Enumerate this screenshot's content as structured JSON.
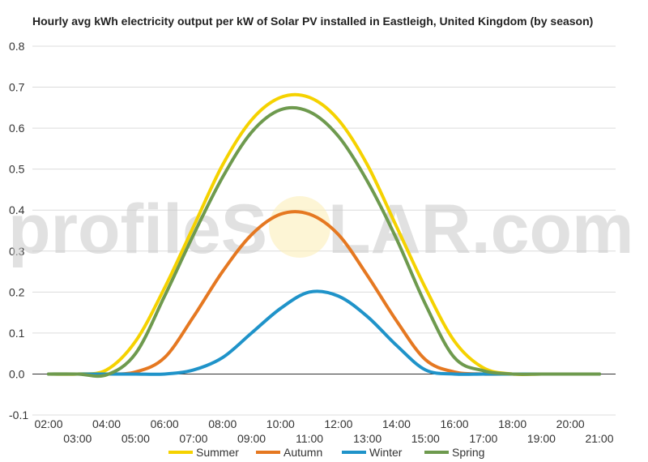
{
  "watermark": {
    "left": "profileS",
    "right": "LAR.com"
  },
  "chart_data": {
    "type": "line",
    "title": "Hourly avg kWh electricity output per kW of Solar PV installed in Eastleigh, United Kingdom (by season)",
    "xlabel": "",
    "ylabel": "",
    "x": [
      "02:00",
      "03:00",
      "04:00",
      "05:00",
      "06:00",
      "07:00",
      "08:00",
      "09:00",
      "10:00",
      "11:00",
      "12:00",
      "13:00",
      "14:00",
      "15:00",
      "16:00",
      "17:00",
      "18:00",
      "19:00",
      "20:00",
      "21:00"
    ],
    "x_tick_labels_upper": [
      "02:00",
      "04:00",
      "06:00",
      "08:00",
      "10:00",
      "12:00",
      "14:00",
      "16:00",
      "18:00",
      "20:00"
    ],
    "x_tick_labels_lower": [
      "03:00",
      "05:00",
      "07:00",
      "09:00",
      "11:00",
      "13:00",
      "15:00",
      "17:00",
      "19:00",
      "21:00"
    ],
    "ylim": [
      -0.1,
      0.8
    ],
    "y_ticks": [
      -0.1,
      0.0,
      0.1,
      0.2,
      0.3,
      0.4,
      0.5,
      0.6,
      0.7,
      0.8
    ],
    "grid": true,
    "legend_position": "bottom",
    "series": [
      {
        "name": "Summer",
        "color": "#f5d200",
        "values": [
          0,
          0,
          0.01,
          0.08,
          0.21,
          0.36,
          0.51,
          0.62,
          0.675,
          0.675,
          0.62,
          0.51,
          0.36,
          0.21,
          0.08,
          0.015,
          0,
          0,
          0,
          0
        ]
      },
      {
        "name": "Autumn",
        "color": "#e57821",
        "values": [
          0,
          0,
          0,
          0.005,
          0.04,
          0.14,
          0.25,
          0.34,
          0.39,
          0.39,
          0.34,
          0.24,
          0.13,
          0.035,
          0.005,
          0,
          0,
          0,
          0,
          0
        ]
      },
      {
        "name": "Winter",
        "color": "#1f93c9",
        "values": [
          0,
          0,
          0,
          0,
          0,
          0.01,
          0.04,
          0.1,
          0.16,
          0.2,
          0.19,
          0.14,
          0.07,
          0.01,
          0,
          0,
          0,
          0,
          0,
          0
        ]
      },
      {
        "name": "Spring",
        "color": "#6e9a4e",
        "values": [
          0,
          0,
          -0.002,
          0.05,
          0.19,
          0.34,
          0.48,
          0.59,
          0.645,
          0.64,
          0.58,
          0.47,
          0.33,
          0.17,
          0.04,
          0.008,
          0,
          0,
          0,
          0
        ]
      }
    ]
  }
}
